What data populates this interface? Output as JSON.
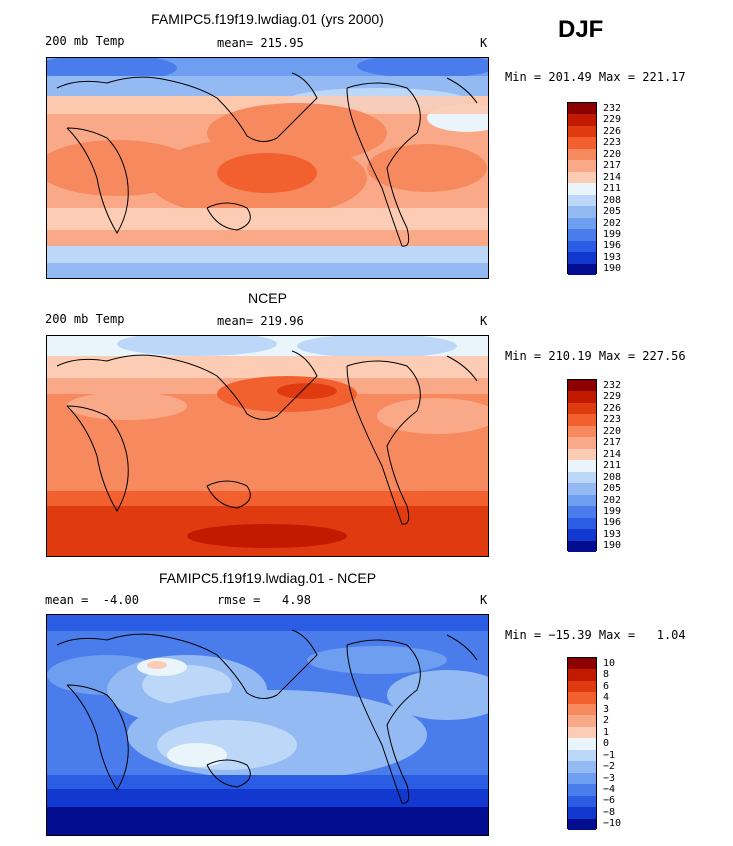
{
  "season": "DJF",
  "panels": [
    {
      "title": "FAMIPC5.f19f19.lwdiag.01 (yrs 2000)",
      "left_label": "200 mb Temp",
      "mid_label": "mean= 215.95",
      "unit": "K",
      "stats": "Min = 201.49 Max = 221.17",
      "levels": [
        "232",
        "229",
        "226",
        "223",
        "220",
        "217",
        "214",
        "211",
        "208",
        "205",
        "202",
        "199",
        "196",
        "193",
        "190"
      ],
      "colors": [
        "#8b0000",
        "#c21a00",
        "#e03a10",
        "#f2602f",
        "#f7895f",
        "#f9a988",
        "#fcccb4",
        "#e9f4fb",
        "#bcd7f8",
        "#94baf4",
        "#6e9ef0",
        "#4a7deb",
        "#2b5ce4",
        "#1238cf",
        "#030d8f"
      ]
    },
    {
      "title": "NCEP",
      "left_label": "200 mb Temp",
      "mid_label": "mean= 219.96",
      "unit": "K",
      "stats": "Min = 210.19 Max = 227.56",
      "levels": [
        "232",
        "229",
        "226",
        "223",
        "220",
        "217",
        "214",
        "211",
        "208",
        "205",
        "202",
        "199",
        "196",
        "193",
        "190"
      ],
      "colors": [
        "#8b0000",
        "#c21a00",
        "#e03a10",
        "#f2602f",
        "#f7895f",
        "#f9a988",
        "#fcccb4",
        "#e9f4fb",
        "#bcd7f8",
        "#94baf4",
        "#6e9ef0",
        "#4a7deb",
        "#2b5ce4",
        "#1238cf",
        "#030d8f"
      ]
    },
    {
      "title": "FAMIPC5.f19f19.lwdiag.01 - NCEP",
      "left_label": "mean =  -4.00",
      "mid_label": "rmse =   4.98",
      "unit": "K",
      "stats": "Min = −15.39 Max =   1.04",
      "levels": [
        "10",
        "8",
        "6",
        "4",
        "3",
        "2",
        "1",
        "0",
        "−1",
        "−2",
        "−3",
        "−4",
        "−6",
        "−8",
        "−10"
      ],
      "colors": [
        "#8b0000",
        "#c21a00",
        "#e03a10",
        "#f2602f",
        "#f7895f",
        "#f9a988",
        "#fcccb4",
        "#e9f4fb",
        "#bcd7f8",
        "#94baf4",
        "#6e9ef0",
        "#4a7deb",
        "#2b5ce4",
        "#1238cf",
        "#030d8f"
      ]
    }
  ],
  "chart_data": [
    {
      "type": "heatmap",
      "title": "FAMIPC5.f19f19.lwdiag.01 (yrs 2000)",
      "variable": "200 mb Temp",
      "units": "K",
      "mean": 215.95,
      "min": 201.49,
      "max": 221.17,
      "contour_levels": [
        190,
        193,
        196,
        199,
        202,
        205,
        208,
        211,
        214,
        217,
        220,
        223,
        226,
        229,
        232
      ]
    },
    {
      "type": "heatmap",
      "title": "NCEP",
      "variable": "200 mb Temp",
      "units": "K",
      "mean": 219.96,
      "min": 210.19,
      "max": 227.56,
      "contour_levels": [
        190,
        193,
        196,
        199,
        202,
        205,
        208,
        211,
        214,
        217,
        220,
        223,
        226,
        229,
        232
      ]
    },
    {
      "type": "heatmap",
      "title": "FAMIPC5.f19f19.lwdiag.01 - NCEP",
      "units": "K",
      "mean": -4.0,
      "rmse": 4.98,
      "min": -15.39,
      "max": 1.04,
      "contour_levels": [
        -10,
        -8,
        -6,
        -4,
        -3,
        -2,
        -1,
        0,
        1,
        2,
        3,
        4,
        6,
        8,
        10
      ]
    }
  ]
}
